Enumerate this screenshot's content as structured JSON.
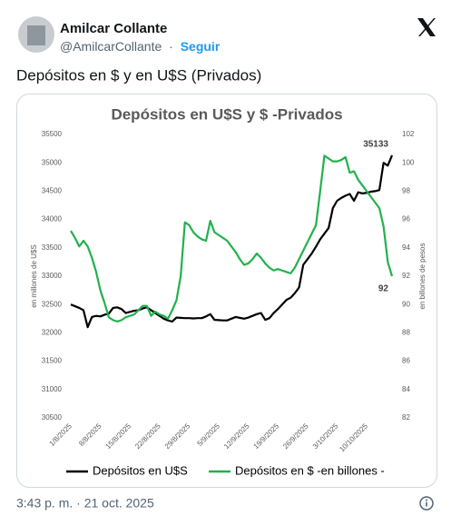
{
  "tweet": {
    "name": "Amilcar Collante",
    "handle": "@AmilcarCollante",
    "separator": "·",
    "follow": "Seguir",
    "text": "Depósitos en $ y en U$S (Privados)",
    "timestamp": "3:43 p. m. · 21 oct. 2025"
  },
  "chart_data": {
    "type": "line",
    "title": "Depósitos en U$S y $ -Privados",
    "y_label": "en millones de U$S",
    "y2_label": "en billones de pesos",
    "categories": [
      "1/8/2025",
      null,
      null,
      null,
      null,
      null,
      null,
      "8/8/2025",
      null,
      null,
      null,
      null,
      null,
      null,
      "15/8/2025",
      null,
      null,
      null,
      null,
      null,
      null,
      "22/8/2025",
      null,
      null,
      null,
      null,
      null,
      null,
      "29/8/2025",
      null,
      null,
      null,
      null,
      null,
      null,
      "5/9/2025",
      null,
      null,
      null,
      null,
      null,
      null,
      "12/9/2025",
      null,
      null,
      null,
      null,
      null,
      null,
      "19/9/2025",
      null,
      null,
      null,
      null,
      null,
      null,
      "26/9/2025",
      null,
      null,
      null,
      null,
      null,
      null,
      "3/10/2025",
      null,
      null,
      null,
      null,
      null,
      null,
      "10/10/2025",
      null,
      null,
      null,
      null,
      null,
      null
    ],
    "series": [
      {
        "name": "Depósitos en U$S",
        "color": "#000000",
        "values": [
          32500,
          32470,
          32440,
          32400,
          32100,
          32280,
          32300,
          32290,
          32320,
          32340,
          32440,
          32450,
          32420,
          32350,
          32370,
          32390,
          32400,
          32430,
          32450,
          32400,
          32350,
          32300,
          32250,
          32220,
          32200,
          32270,
          32265,
          32260,
          32260,
          32255,
          32260,
          32260,
          32290,
          32330,
          32230,
          32225,
          32220,
          32220,
          32250,
          32280,
          32265,
          32250,
          32270,
          32300,
          32330,
          32350,
          32230,
          32260,
          32350,
          32420,
          32500,
          32580,
          32620,
          32700,
          32800,
          33200,
          33300,
          33400,
          33520,
          33650,
          33750,
          33850,
          34200,
          34330,
          34380,
          34420,
          34450,
          34330,
          34480,
          34460,
          34470,
          34490,
          34500,
          34520,
          35000,
          34950,
          35133
        ]
      },
      {
        "name": "Depósitos en $ -en billones -",
        "color": "#22b14c",
        "axis": "y2",
        "values": [
          95.2,
          94.7,
          94.1,
          94.5,
          94.1,
          93.3,
          92.3,
          91,
          90.1,
          89.1,
          88.9,
          88.8,
          88.9,
          89.1,
          89.2,
          89.3,
          89.6,
          89.9,
          89.9,
          89.2,
          89.5,
          89.3,
          89.2,
          89,
          89.6,
          90.3,
          92,
          95.8,
          95.6,
          95.1,
          94.8,
          94.6,
          94.5,
          95.9,
          95.1,
          94.9,
          94.7,
          94.5,
          94.1,
          93.7,
          93.2,
          92.8,
          92.9,
          93.2,
          93.6,
          93.3,
          92.9,
          92.6,
          92.4,
          92.5,
          92.4,
          92.3,
          92.2,
          92.6,
          93.2,
          93.8,
          94.4,
          95,
          95.6,
          98,
          100.5,
          100.3,
          100.1,
          100.1,
          100.2,
          100.4,
          99.3,
          99.4,
          98.8,
          98.4,
          98,
          97.6,
          97.2,
          96.8,
          95.5,
          93,
          92
        ]
      }
    ],
    "ylim": [
      30500,
      35500
    ],
    "yticks": [
      30500,
      31000,
      31500,
      32000,
      32500,
      33000,
      33500,
      34000,
      34500,
      35000,
      35500
    ],
    "y2lim": [
      82,
      102
    ],
    "y2ticks": [
      82,
      84,
      86,
      88,
      90,
      92,
      94,
      96,
      98,
      100,
      102
    ],
    "grid": false,
    "legend": "bottom"
  }
}
